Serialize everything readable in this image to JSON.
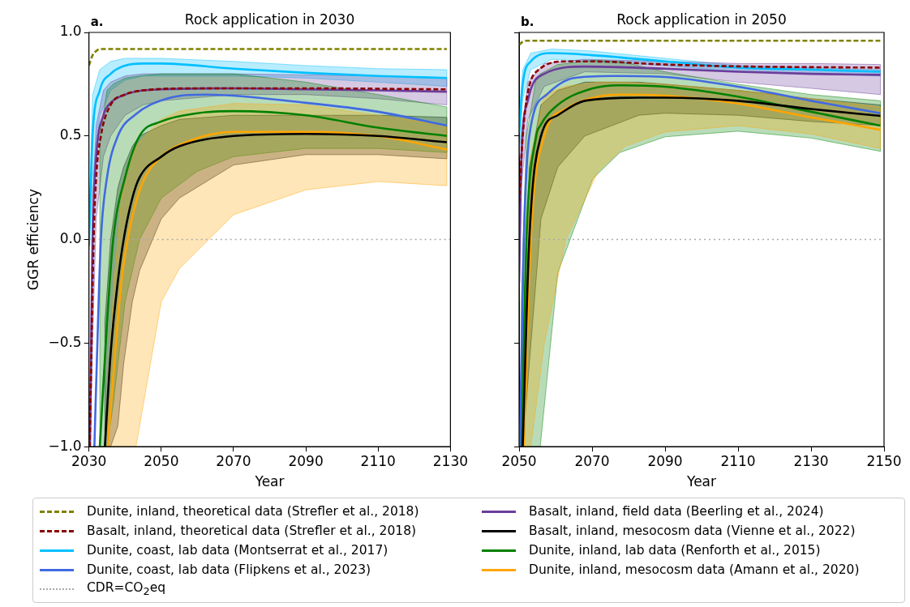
{
  "chart_data": [
    {
      "type": "line",
      "title": "Rock application in 2030",
      "annotations": [
        "a."
      ],
      "xlabel": "Year",
      "ylabel": "GGR efficiency",
      "xlim": [
        2030,
        2130
      ],
      "xticks": [
        2030,
        2050,
        2070,
        2090,
        2110,
        2130
      ],
      "ylim": [
        -1,
        1
      ],
      "yticks": [
        {
          "value": -1,
          "label": "−1.0"
        },
        {
          "value": -0.5,
          "label": "−0.5"
        },
        {
          "value": 0,
          "label": "0.0"
        },
        {
          "value": 0.5,
          "label": "0.5"
        },
        {
          "value": 1,
          "label": "1.0"
        }
      ],
      "grid": false,
      "legend": "bottom",
      "marker": "none",
      "ref_lines": [
        {
          "axis": "y",
          "value": 0,
          "label": "CDR=CO$_{2}$eq",
          "color": "#aaaaaa",
          "line_style": "dotted"
        }
      ],
      "series": [
        {
          "name": "Dunite, inland, theoretical data (Strefler et al., 2018)",
          "color": "#808000",
          "line_style": "dashed",
          "x": [
            2030,
            2031,
            2032,
            2033,
            2050,
            2090,
            2129
          ],
          "values": [
            0.84,
            0.89,
            0.91,
            0.92,
            0.92,
            0.92,
            0.92
          ]
        },
        {
          "name": "Basalt, inland, theoretical data (Strefler et al., 2018)",
          "color": "#8b0000",
          "line_style": "dashed",
          "x": [
            2030.2,
            2031.3,
            2032,
            2033.3,
            2036,
            2040,
            2045,
            2060,
            2090,
            2129
          ],
          "values": [
            -1,
            0,
            0.3,
            0.5,
            0.65,
            0.7,
            0.72,
            0.73,
            0.73,
            0.725
          ]
        },
        {
          "name": "Dunite, coast, lab data (Montserrat et al., 2017)",
          "color": "#00bfff",
          "x": [
            2030,
            2031,
            2033,
            2036,
            2040,
            2045,
            2050,
            2070,
            2090,
            2110,
            2129
          ],
          "values": [
            -0.03,
            0.5,
            0.72,
            0.8,
            0.84,
            0.85,
            0.85,
            0.825,
            0.805,
            0.79,
            0.78
          ],
          "upper": [
            0.05,
            0.7,
            0.82,
            0.86,
            0.875,
            0.875,
            0.875,
            0.86,
            0.84,
            0.825,
            0.82
          ],
          "lower": [
            -0.05,
            0.3,
            0.6,
            0.72,
            0.77,
            0.79,
            0.79,
            0.79,
            0.78,
            0.76,
            0.74
          ]
        },
        {
          "name": "Dunite, coast, lab data (Flipkens et al., 2023)",
          "color": "#4169e1",
          "x": [
            2031.5,
            2032.5,
            2033.3,
            2035,
            2038,
            2042.6,
            2051.5,
            2062.6,
            2090,
            2110,
            2129
          ],
          "values": [
            -1,
            -0.4,
            0,
            0.3,
            0.5,
            0.6,
            0.68,
            0.7,
            0.66,
            0.617,
            0.55
          ]
        },
        {
          "name": "Basalt, inland, field data (Beerling et al., 2024)",
          "color": "#6a3d9a",
          "x": [
            2030.3,
            2031,
            2032,
            2034,
            2036,
            2040,
            2045,
            2050,
            2070,
            2090,
            2110,
            2129
          ],
          "values": [
            -1,
            0,
            0.4,
            0.6,
            0.66,
            0.7,
            0.72,
            0.725,
            0.73,
            0.725,
            0.72,
            0.714
          ],
          "upper": [
            -0.6,
            0.2,
            0.55,
            0.72,
            0.76,
            0.79,
            0.8,
            0.8,
            0.8,
            0.795,
            0.79,
            0.78
          ],
          "lower": [
            -1,
            -0.5,
            0.1,
            0.4,
            0.5,
            0.6,
            0.65,
            0.67,
            0.7,
            0.7,
            0.68,
            0.65
          ]
        },
        {
          "name": "Basalt, inland, mesocosm data (Vienne et al., 2022)",
          "color": "#000000",
          "x": [
            2034.4,
            2036,
            2038,
            2039.6,
            2042,
            2044,
            2050,
            2055,
            2070,
            2090,
            2110,
            2129
          ],
          "values": [
            -1,
            -0.55,
            -0.2,
            0,
            0.2,
            0.3,
            0.4,
            0.45,
            0.5,
            0.51,
            0.5,
            0.47
          ],
          "upper": [
            -0.4,
            0,
            0.25,
            0.35,
            0.45,
            0.5,
            0.55,
            0.58,
            0.6,
            0.6,
            0.6,
            0.59
          ],
          "lower": [
            -1,
            -1,
            -0.9,
            -0.6,
            -0.3,
            -0.15,
            0.1,
            0.2,
            0.36,
            0.41,
            0.41,
            0.39
          ]
        },
        {
          "name": "Dunite, inland, lab data (Renforth et al., 2015)",
          "color": "#008000",
          "x": [
            2033,
            2035,
            2036.7,
            2040,
            2044,
            2050,
            2060,
            2070,
            2090,
            2110,
            2129
          ],
          "values": [
            -1,
            -0.4,
            0,
            0.3,
            0.5,
            0.57,
            0.61,
            0.62,
            0.6,
            0.54,
            0.5
          ],
          "upper": [
            0.5,
            0.72,
            0.75,
            0.78,
            0.79,
            0.8,
            0.8,
            0.8,
            0.76,
            0.7,
            0.64
          ],
          "lower": [
            -1,
            -1,
            -0.8,
            -0.3,
            0,
            0.2,
            0.33,
            0.4,
            0.44,
            0.44,
            0.42
          ]
        },
        {
          "name": "Dunite, inland, mesocosm data (Amann et al., 2020)",
          "color": "#ffa500",
          "x": [
            2035.2,
            2037,
            2039,
            2040.7,
            2043,
            2045.5,
            2050,
            2055,
            2070,
            2090,
            2110,
            2129
          ],
          "values": [
            -1,
            -0.6,
            -0.2,
            0,
            0.18,
            0.3,
            0.4,
            0.456,
            0.52,
            0.52,
            0.5,
            0.435
          ],
          "upper": [
            -0.7,
            -0.2,
            0.2,
            0.35,
            0.45,
            0.5,
            0.58,
            0.62,
            0.657,
            0.65,
            0.6,
            0.55
          ],
          "lower": [
            -1,
            -1,
            -1,
            -1,
            -1,
            -0.75,
            -0.3,
            -0.14,
            0.12,
            0.24,
            0.28,
            0.26
          ]
        }
      ]
    },
    {
      "type": "line",
      "title": "Rock application in 2050",
      "annotations": [
        "b."
      ],
      "xlabel": "Year",
      "xlim": [
        2050,
        2150
      ],
      "xticks": [
        2050,
        2070,
        2090,
        2110,
        2130,
        2150
      ],
      "ylim": [
        -1,
        1
      ],
      "yticks": [
        {
          "value": -1,
          "label": null
        },
        {
          "value": -0.5,
          "label": null
        },
        {
          "value": 0,
          "label": null
        },
        {
          "value": 0.5,
          "label": null
        },
        {
          "value": 1,
          "label": null
        }
      ],
      "tick_labels": "x",
      "grid": false,
      "marker": "none",
      "ref_lines": [
        {
          "axis": "y",
          "value": 0,
          "color": "#aaaaaa",
          "line_style": "dotted"
        }
      ],
      "series": [
        {
          "color": "#808000",
          "line_style": "dashed",
          "x": [
            2050,
            2051,
            2052,
            2149
          ],
          "values": [
            0.94,
            0.955,
            0.96,
            0.96
          ]
        },
        {
          "color": "#8b0000",
          "line_style": "dashed",
          "x": [
            2050,
            2051,
            2052.4,
            2055.4,
            2063,
            2070,
            2090,
            2110,
            2149
          ],
          "values": [
            0.18,
            0.5,
            0.71,
            0.82,
            0.86,
            0.86,
            0.845,
            0.836,
            0.83
          ]
        },
        {
          "color": "#00bfff",
          "x": [
            2050,
            2051,
            2053.2,
            2059,
            2070,
            2090,
            2110,
            2130,
            2149
          ],
          "values": [
            0.516,
            0.75,
            0.86,
            0.9,
            0.89,
            0.86,
            0.83,
            0.82,
            0.81
          ],
          "upper": [
            0.6,
            0.82,
            0.9,
            0.92,
            0.91,
            0.875,
            0.84,
            0.83,
            0.82
          ],
          "lower": [
            0.4,
            0.68,
            0.82,
            0.87,
            0.86,
            0.84,
            0.81,
            0.8,
            0.79
          ]
        },
        {
          "color": "#4169e1",
          "x": [
            2050.2,
            2051.3,
            2052.8,
            2057.6,
            2065,
            2075.4,
            2090,
            2110,
            2130,
            2149
          ],
          "values": [
            -1,
            0,
            0.5,
            0.7,
            0.78,
            0.79,
            0.785,
            0.738,
            0.67,
            0.61
          ]
        },
        {
          "color": "#6a3d9a",
          "x": [
            2050,
            2050.6,
            2052.4,
            2056.9,
            2068,
            2090,
            2110,
            2130,
            2149
          ],
          "values": [
            -0.21,
            0.375,
            0.67,
            0.8,
            0.835,
            0.825,
            0.81,
            0.8,
            0.795
          ],
          "upper": [
            -0.1,
            0.5,
            0.76,
            0.85,
            0.87,
            0.86,
            0.85,
            0.85,
            0.845
          ],
          "lower": [
            -0.3,
            0.25,
            0.58,
            0.74,
            0.81,
            0.8,
            0.76,
            0.73,
            0.7
          ]
        },
        {
          "color": "#000000",
          "x": [
            2051,
            2052.8,
            2056,
            2060.6,
            2068,
            2082.8,
            2090,
            2110,
            2130,
            2149
          ],
          "values": [
            -1,
            0,
            0.5,
            0.6,
            0.67,
            0.685,
            0.685,
            0.67,
            0.63,
            0.597
          ],
          "upper": [
            -0.5,
            0.35,
            0.65,
            0.72,
            0.76,
            0.76,
            0.75,
            0.72,
            0.68,
            0.65
          ],
          "lower": [
            -1,
            -0.6,
            0.1,
            0.35,
            0.5,
            0.6,
            0.61,
            0.6,
            0.57,
            0.55
          ]
        },
        {
          "color": "#008000",
          "x": [
            2050.6,
            2052,
            2054.7,
            2055.8,
            2060.6,
            2070.2,
            2077.6,
            2090,
            2110,
            2130,
            2149
          ],
          "values": [
            -1,
            0,
            0.5,
            0.55,
            0.65,
            0.73,
            0.745,
            0.738,
            0.69,
            0.617,
            0.55
          ],
          "upper": [
            -0.3,
            0.5,
            0.78,
            0.8,
            0.845,
            0.865,
            0.86,
            0.81,
            0.75,
            0.7,
            0.67
          ],
          "lower": [
            -1,
            -1,
            -1,
            -1,
            -0.16,
            0.294,
            0.42,
            0.496,
            0.523,
            0.49,
            0.426
          ]
        },
        {
          "color": "#ffa500",
          "x": [
            2051.3,
            2053.2,
            2056.9,
            2062.8,
            2071.7,
            2079,
            2090,
            2110,
            2130,
            2149
          ],
          "values": [
            -1,
            0,
            0.5,
            0.63,
            0.69,
            0.7,
            0.695,
            0.657,
            0.59,
            0.53
          ],
          "upper": [
            -0.4,
            0.4,
            0.7,
            0.74,
            0.76,
            0.76,
            0.75,
            0.72,
            0.68,
            0.64
          ],
          "lower": [
            -1,
            -1,
            -0.5,
            0,
            0.33,
            0.45,
            0.52,
            0.55,
            0.51,
            0.44
          ]
        }
      ]
    }
  ]
}
